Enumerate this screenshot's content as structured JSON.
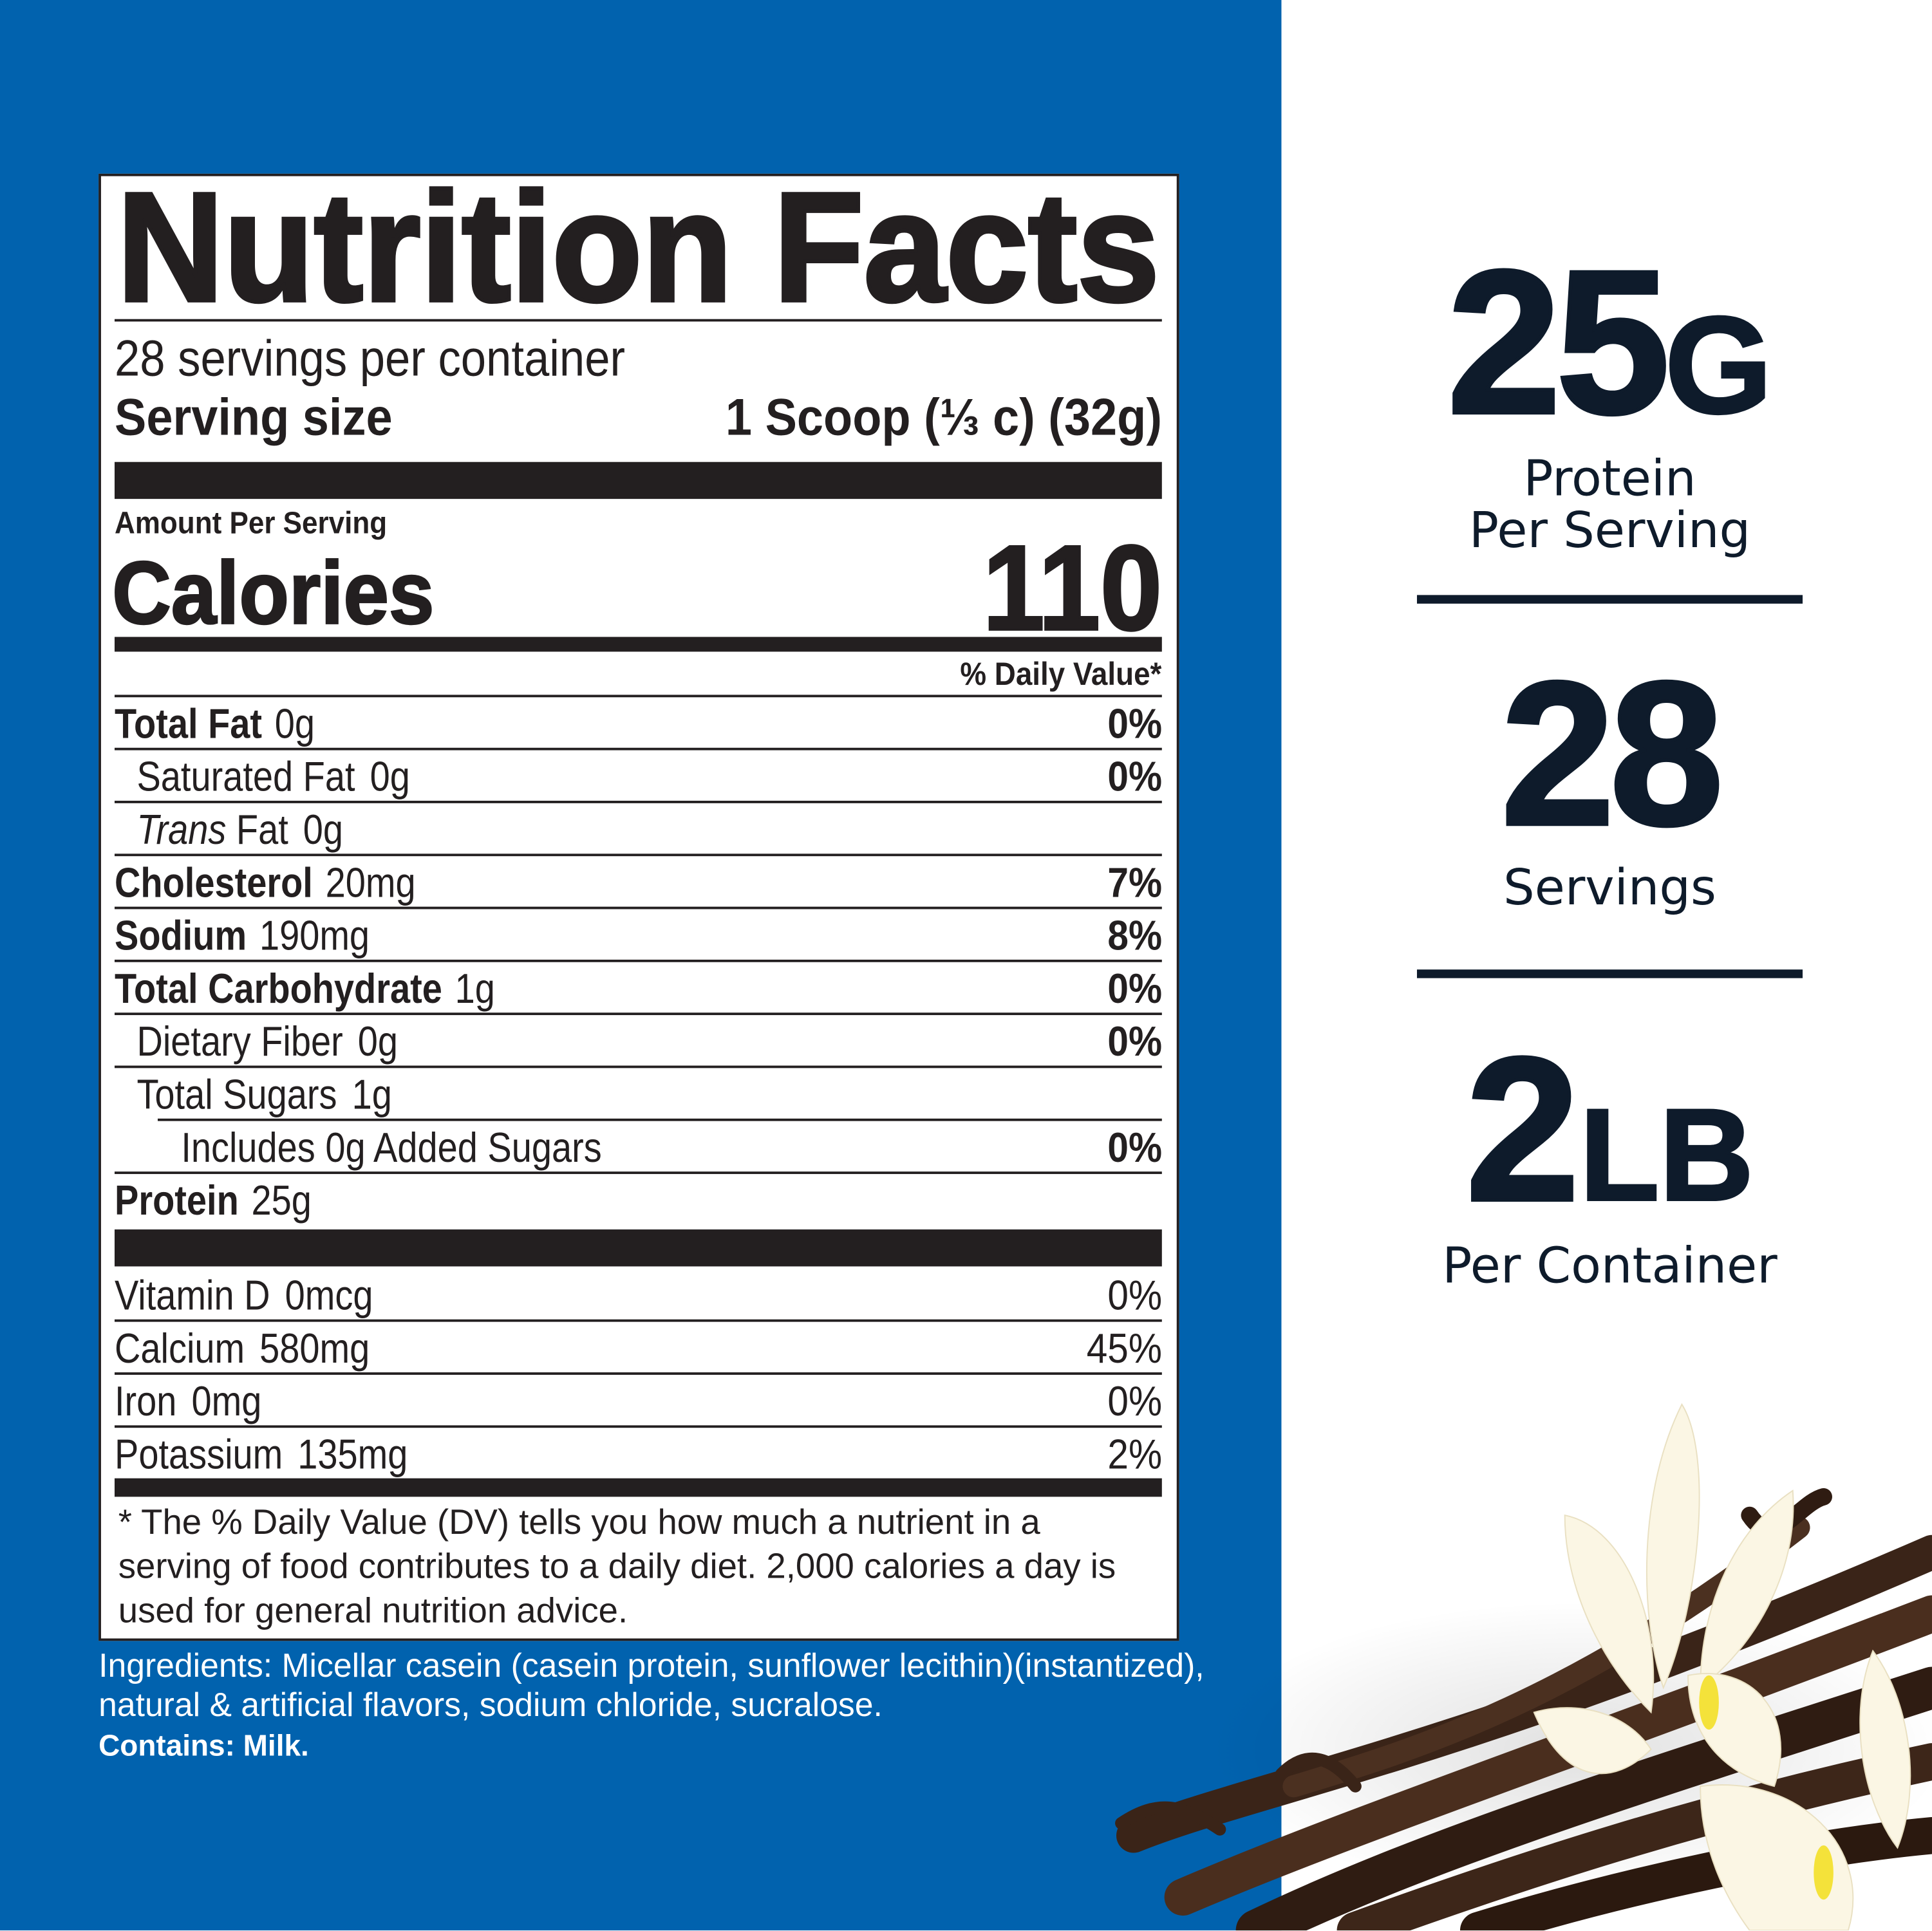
{
  "colors": {
    "panel": "#0162ae",
    "ink": "#231f20",
    "accent_text": "#0e1b2b"
  },
  "label": {
    "title": "Nutrition Facts",
    "servings_per_container": "28 servings per container",
    "serving_size_label": "Serving size",
    "serving_size_value": "1 Scoop (⅓ c) (32g)",
    "amount_per_serving": "Amount Per Serving",
    "calories_label": "Calories",
    "calories_value": "110",
    "daily_value_header": "% Daily Value*",
    "nutrients": [
      {
        "name": "Total Fat",
        "amount": "0g",
        "dv": "0%",
        "bold": true,
        "indent": 0
      },
      {
        "name": "Saturated Fat",
        "amount": "0g",
        "dv": "0%",
        "bold": false,
        "indent": 1
      },
      {
        "name": "Trans",
        "name_suffix": " Fat",
        "amount": "0g",
        "dv": "",
        "bold": false,
        "indent": 1,
        "italic_name": true
      },
      {
        "name": "Cholesterol",
        "amount": "20mg",
        "dv": "7%",
        "bold": true,
        "indent": 0
      },
      {
        "name": "Sodium",
        "amount": "190mg",
        "dv": "8%",
        "bold": true,
        "indent": 0
      },
      {
        "name": "Total Carbohydrate",
        "amount": "1g",
        "dv": "0%",
        "bold": true,
        "indent": 0
      },
      {
        "name": "Dietary Fiber",
        "amount": "0g",
        "dv": "0%",
        "bold": false,
        "indent": 1
      },
      {
        "name": "Total Sugars",
        "amount": "1g",
        "dv": "",
        "bold": false,
        "indent": 1
      },
      {
        "name": "Includes 0g Added Sugars",
        "amount": "",
        "dv": "0%",
        "bold": false,
        "indent": 2
      },
      {
        "name": "Protein",
        "amount": "25g",
        "dv": "",
        "bold": true,
        "indent": 0
      }
    ],
    "vitamins": [
      {
        "name": "Vitamin D",
        "amount": "0mcg",
        "dv": "0%"
      },
      {
        "name": "Calcium",
        "amount": "580mg",
        "dv": "45%"
      },
      {
        "name": "Iron",
        "amount": "0mg",
        "dv": "0%"
      },
      {
        "name": "Potassium",
        "amount": "135mg",
        "dv": "2%"
      }
    ],
    "footnote": [
      "* The % Daily Value (DV) tells you how much a nutrient in a",
      "serving of food contributes to a daily diet. 2,000 calories a day is",
      "used for general nutrition advice."
    ]
  },
  "ingredients": {
    "lines": [
      "Ingredients: Micellar casein (casein protein, sunflower lecithin)(instantized),",
      "natural & artificial flavors, sodium chloride, sucralose."
    ],
    "contains": "Contains: Milk."
  },
  "highlights": [
    {
      "number": "25",
      "unit": "G",
      "caption": [
        "Protein",
        "Per Serving"
      ]
    },
    {
      "number": "28",
      "unit": "",
      "caption": [
        "Servings"
      ]
    },
    {
      "number": "2",
      "unit": "LB",
      "caption": [
        "Per Container"
      ]
    }
  ],
  "image": {
    "icon": "vanilla-beans-and-orchid-photo"
  }
}
